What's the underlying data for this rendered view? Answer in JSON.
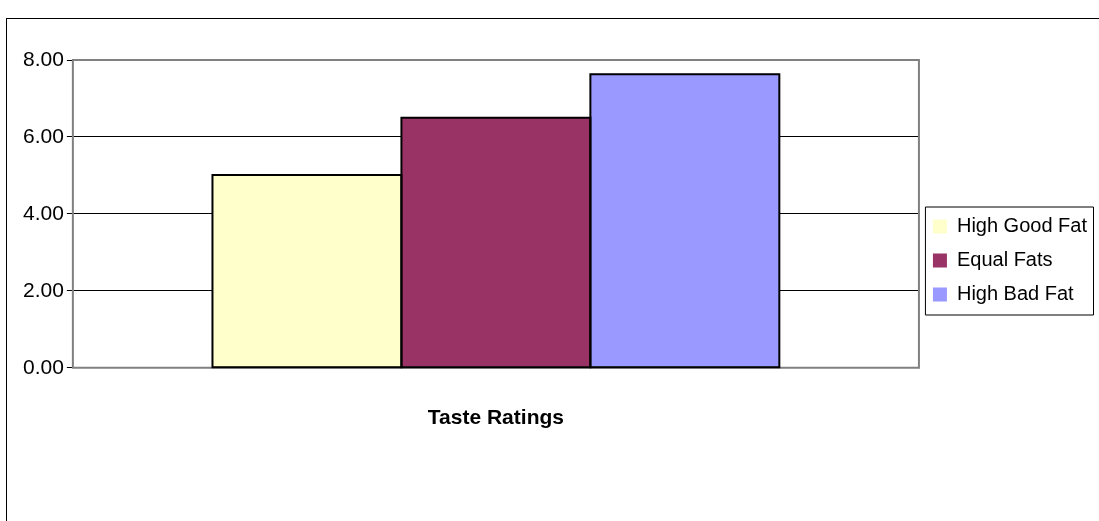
{
  "chart_data": {
    "type": "bar",
    "categories": [
      "Taste Ratings"
    ],
    "series": [
      {
        "name": "High Good Fat",
        "color": "#ffffcc",
        "values": [
          5.01
        ]
      },
      {
        "name": "Equal Fats",
        "color": "#993366",
        "values": [
          6.5
        ]
      },
      {
        "name": "High Bad Fat",
        "color": "#9999ff",
        "values": [
          7.63
        ]
      }
    ],
    "ylim": [
      0,
      8
    ],
    "yticks": [
      {
        "value": 0,
        "label": "0.00"
      },
      {
        "value": 2,
        "label": "2.00"
      },
      {
        "value": 4,
        "label": "4.00"
      },
      {
        "value": 6,
        "label": "6.00"
      },
      {
        "value": 8,
        "label": "8.00"
      }
    ],
    "grid": "y",
    "legend": "right"
  }
}
